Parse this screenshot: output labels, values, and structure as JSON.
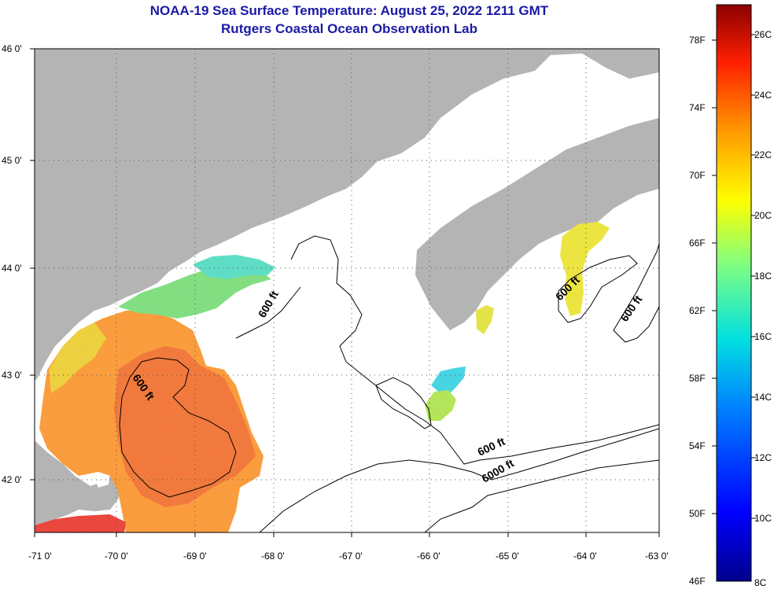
{
  "title": {
    "line1": "NOAA-19 Sea Surface Temperature:  August 25, 2022 1211 GMT",
    "line2": "Rutgers Coastal Ocean Observation Lab"
  },
  "map": {
    "lat_labels": [
      "46 0'",
      "45 0'",
      "44 0'",
      "43 0'",
      "42 0'"
    ],
    "lon_labels": [
      "-71 0'",
      "-70 0'",
      "-69 0'",
      "-68 0'",
      "-67 0'",
      "-66 0'",
      "-65 0'",
      "-64 0'",
      "-63 0'"
    ],
    "contour_labels": [
      "600 ft",
      "600 ft",
      "600 ft",
      "600 ft",
      "600 ft",
      "6000 ft"
    ],
    "colors": {
      "land": "#b4b4b4",
      "water": "#ffffff"
    }
  },
  "colorbar": {
    "fahrenheit_labels": [
      "78F",
      "74F",
      "70F",
      "66F",
      "62F",
      "58F",
      "54F",
      "50F",
      "46F"
    ],
    "celsius_labels": [
      "26C",
      "24C",
      "22C",
      "20C",
      "18C",
      "16C",
      "14C",
      "12C",
      "10C",
      "8C"
    ]
  }
}
